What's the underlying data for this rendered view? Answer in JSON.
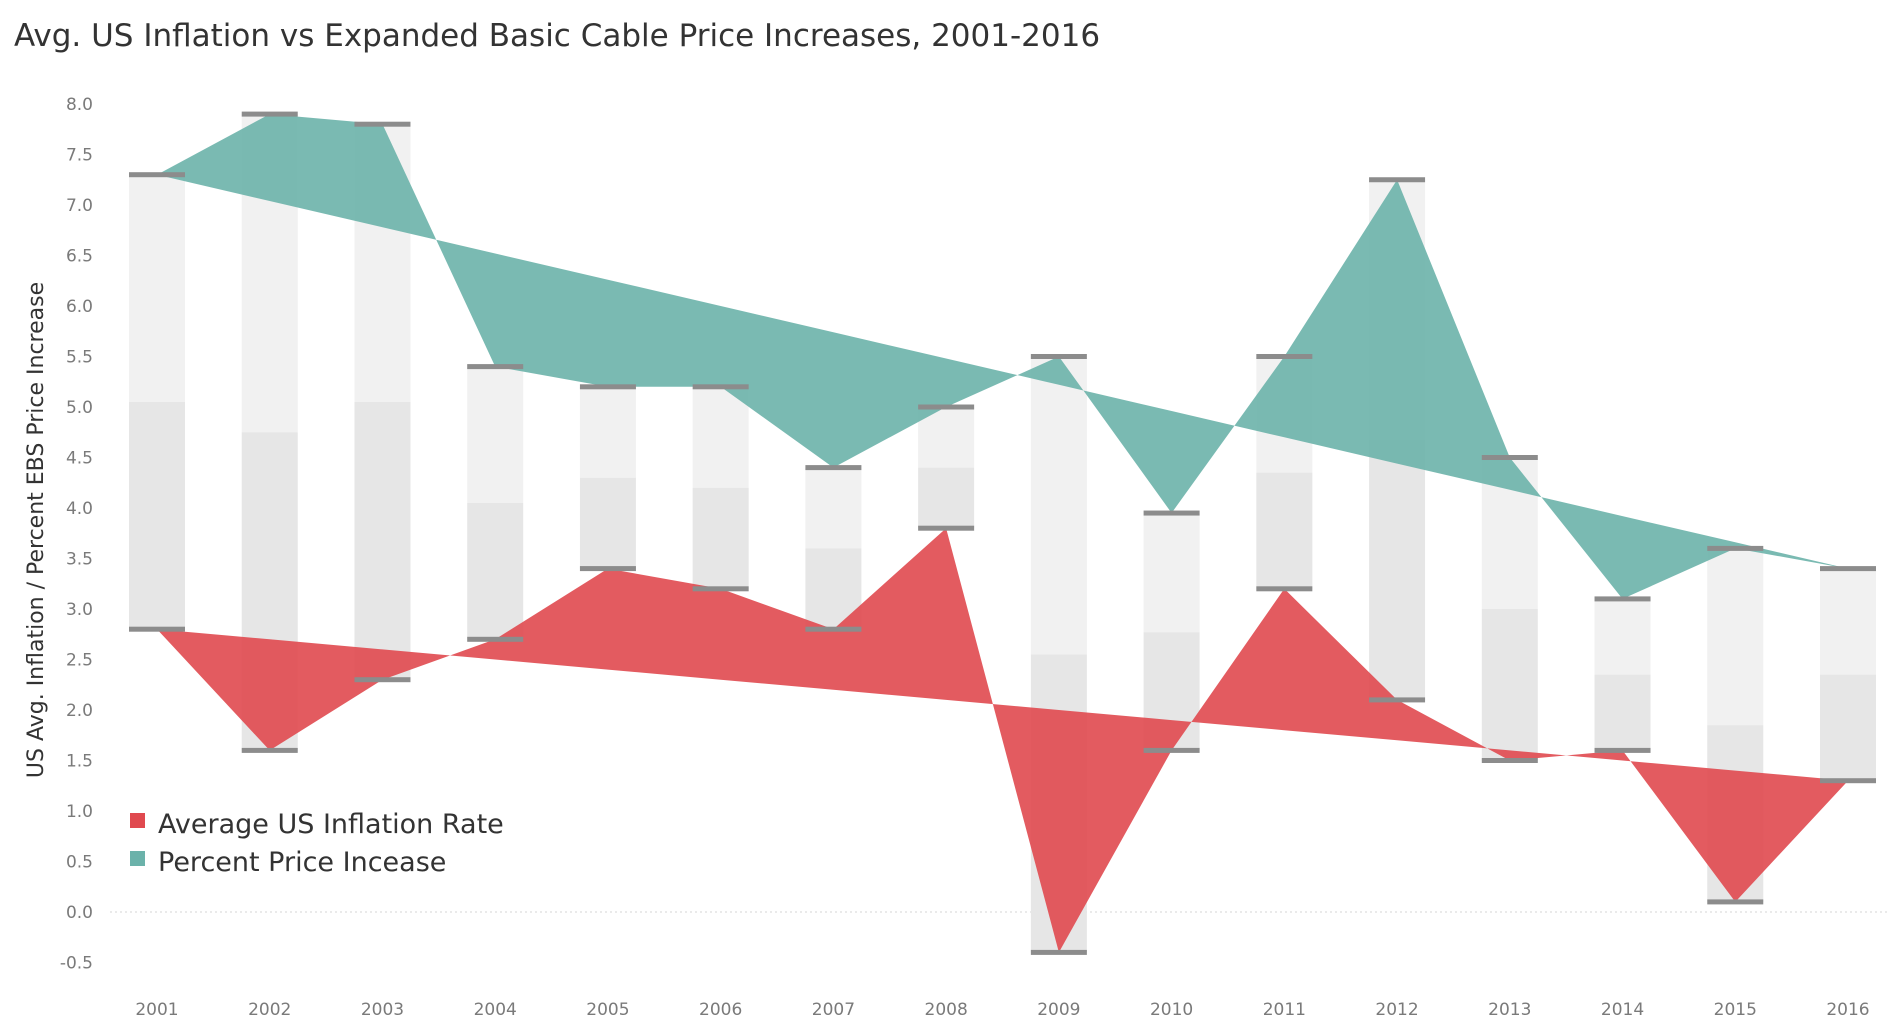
{
  "chart_data": {
    "type": "area",
    "title": "Avg. US Inflation vs Expanded Basic Cable Price Increases, 2001-2016",
    "ylabel": "US Avg. Inflation / Percent EBS Price Increase",
    "xlabel": "",
    "categories": [
      "2001",
      "2002",
      "2003",
      "2004",
      "2005",
      "2006",
      "2007",
      "2008",
      "2009",
      "2010",
      "2011",
      "2012",
      "2013",
      "2014",
      "2015",
      "2016"
    ],
    "ylim": [
      -0.75,
      8.2
    ],
    "yticks": [
      "8.0",
      "7.5",
      "7.0",
      "6.5",
      "6.0",
      "5.5",
      "5.0",
      "4.5",
      "4.0",
      "3.5",
      "3.0",
      "2.5",
      "2.0",
      "1.5",
      "1.0",
      "0.5",
      "0.0",
      "-0.5"
    ],
    "series": [
      {
        "name": "Average US Inflation Rate",
        "color": "#e0494f",
        "values": [
          2.8,
          1.6,
          2.3,
          2.7,
          3.4,
          3.2,
          2.8,
          3.8,
          -0.4,
          1.6,
          3.2,
          2.1,
          1.5,
          1.6,
          0.1,
          1.3
        ],
        "trend": [
          2.8,
          1.3
        ]
      },
      {
        "name": "Percent Price Incease",
        "color": "#6bb2aa",
        "values": [
          7.3,
          7.9,
          7.8,
          5.4,
          5.2,
          5.2,
          4.4,
          5.0,
          5.5,
          3.95,
          5.5,
          7.25,
          4.5,
          3.1,
          3.6,
          3.4
        ],
        "trend": [
          7.3,
          3.4
        ]
      }
    ],
    "range_band_mid": [
      5.05,
      4.75,
      5.05,
      4.05,
      4.3,
      4.2,
      3.6,
      4.4,
      2.55,
      2.77,
      4.35,
      4.67,
      3.0,
      2.35,
      1.85,
      2.35
    ],
    "grid": false,
    "legend_position": "bottom-left"
  }
}
